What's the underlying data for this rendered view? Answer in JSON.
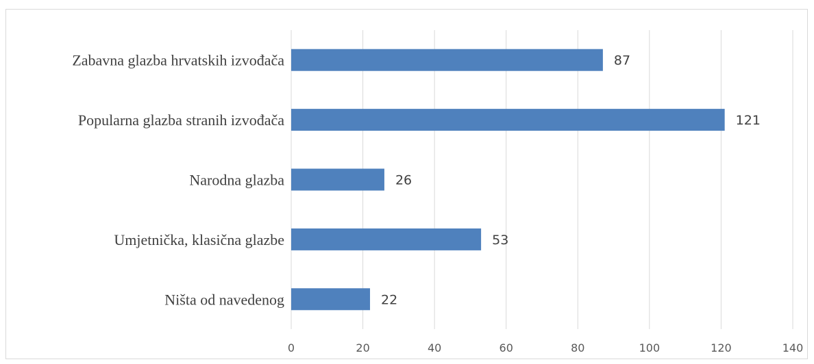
{
  "chart_data": {
    "type": "bar",
    "orientation": "horizontal",
    "title": "",
    "xlabel": "",
    "ylabel": "",
    "categories": [
      "Zabavna glazba hrvatskih izvođača",
      "Popularna glazba stranih izvođača",
      "Narodna glazba",
      "Umjetnička, klasična glazbe",
      "Ništa od navedenog"
    ],
    "values": [
      87,
      121,
      26,
      53,
      22
    ],
    "xlim": [
      0,
      140
    ],
    "xticks": [
      0,
      20,
      40,
      60,
      80,
      100,
      120,
      140
    ],
    "grid": "vertical",
    "data_labels": true,
    "bar_color": "#4f81bd",
    "gridline_color": "#d9d9d9"
  }
}
